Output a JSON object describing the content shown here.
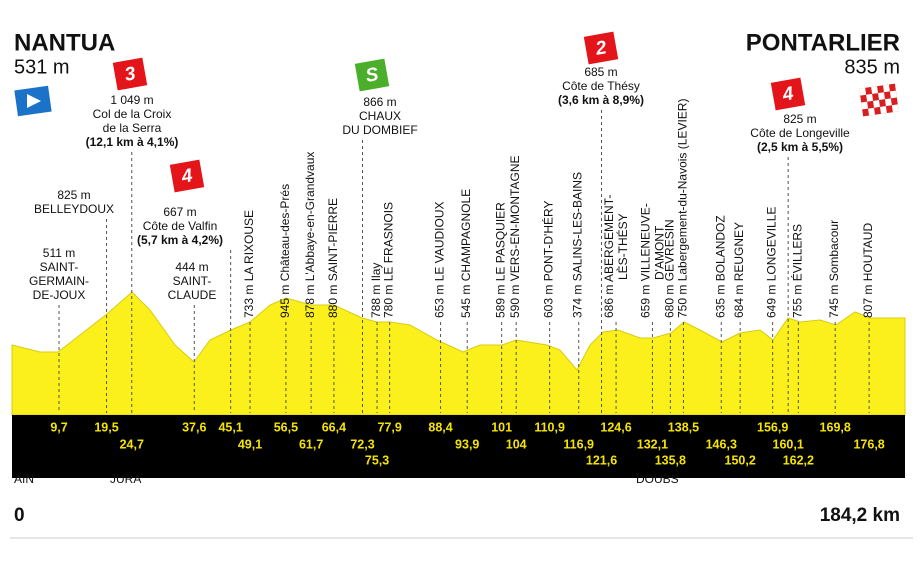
{
  "start": {
    "name": "NANTUA",
    "altitude": "531 m",
    "distance": {
      "value": 0,
      "label": "0"
    }
  },
  "finish": {
    "name": "PONTARLIER",
    "altitude": "835 m",
    "distance": {
      "value": 184.2,
      "label": "184,2 km"
    }
  },
  "regions": [
    "AIN",
    "JURA",
    "DOUBS"
  ],
  "waypoints": [
    {
      "type": "place",
      "km": {
        "value": 9.7,
        "label": "9,7"
      },
      "altitude": "511 m",
      "name_lines": [
        "SAINT-",
        "GERMAIN-",
        "DE-JOUX"
      ]
    },
    {
      "type": "place",
      "km": {
        "value": 19.5,
        "label": "19,5"
      },
      "altitude": "825 m",
      "name_lines": [
        "BELLEYDOUX"
      ]
    },
    {
      "type": "climb",
      "km": {
        "value": 24.7,
        "label": "24,7"
      },
      "category": "3",
      "altitude": "1 049 m",
      "name_lines": [
        "Col de la Croix",
        "de la Serra"
      ],
      "detail": "(12,1 km à 4,1%)"
    },
    {
      "type": "place",
      "km": {
        "value": 37.6,
        "label": "37,6"
      },
      "altitude": "444 m",
      "name_lines": [
        "SAINT-",
        "CLAUDE"
      ]
    },
    {
      "type": "climb",
      "km": {
        "value": 45.1,
        "label": "45,1"
      },
      "category": "4",
      "altitude": "667 m",
      "name_lines": [
        "Côte de Valfin"
      ],
      "detail": "(5,7 km à 4,2%)"
    },
    {
      "type": "town",
      "km": {
        "value": 49.1,
        "label": "49,1"
      },
      "altitude": "733 m",
      "name_lines": [
        "LA RIXOUSE"
      ]
    },
    {
      "type": "town",
      "km": {
        "value": 56.5,
        "label": "56,5"
      },
      "altitude": "945 m",
      "name_lines": [
        "Château-des-Prés"
      ]
    },
    {
      "type": "town",
      "km": {
        "value": 61.7,
        "label": "61,7"
      },
      "altitude": "878 m",
      "name_lines": [
        "L'Abbaye-en-Grandvaux"
      ]
    },
    {
      "type": "town",
      "km": {
        "value": 66.4,
        "label": "66,4"
      },
      "altitude": "880 m",
      "name_lines": [
        "SAINT-PIERRE"
      ]
    },
    {
      "type": "sprint",
      "km": {
        "value": 72.3,
        "label": "72,3"
      },
      "category": "S",
      "altitude": "866 m",
      "name_lines": [
        "CHAUX",
        "DU DOMBIEF"
      ]
    },
    {
      "type": "town",
      "km": {
        "value": 75.3,
        "label": "75,3"
      },
      "altitude": "788 m",
      "name_lines": [
        "Ilay"
      ]
    },
    {
      "type": "town",
      "km": {
        "value": 77.9,
        "label": "77,9"
      },
      "altitude": "780 m",
      "name_lines": [
        "LE FRASNOIS"
      ]
    },
    {
      "type": "town",
      "km": {
        "value": 88.4,
        "label": "88,4"
      },
      "altitude": "653 m",
      "name_lines": [
        "LE VAUDIOUX"
      ]
    },
    {
      "type": "town",
      "km": {
        "value": 93.9,
        "label": "93,9"
      },
      "altitude": "545 m",
      "name_lines": [
        "CHAMPAGNOLE"
      ]
    },
    {
      "type": "town",
      "km": {
        "value": 101,
        "label": "101"
      },
      "altitude": "589 m",
      "name_lines": [
        "LE PASQUIER"
      ]
    },
    {
      "type": "town",
      "km": {
        "value": 104,
        "label": "104"
      },
      "altitude": "590 m",
      "name_lines": [
        "VERS-EN-MONTAGNE"
      ]
    },
    {
      "type": "town",
      "km": {
        "value": 110.9,
        "label": "110,9"
      },
      "altitude": "603 m",
      "name_lines": [
        "PONT-D'HÉRY"
      ]
    },
    {
      "type": "town",
      "km": {
        "value": 116.9,
        "label": "116,9"
      },
      "altitude": "374 m",
      "name_lines": [
        "SALINS-LES-BAINS"
      ]
    },
    {
      "type": "climb",
      "km": {
        "value": 121.6,
        "label": "121,6"
      },
      "category": "2",
      "altitude": "685 m",
      "name_lines": [
        "Côte de Thésy"
      ],
      "detail": "(3,6 km à 8,9%)"
    },
    {
      "type": "town",
      "km": {
        "value": 124.6,
        "label": "124,6"
      },
      "altitude": "686 m",
      "name_lines": [
        "ABERGEMENT-",
        "LÈS-THÉSY"
      ]
    },
    {
      "type": "town",
      "km": {
        "value": 132.1,
        "label": "132,1"
      },
      "altitude": "659 m",
      "name_lines": [
        "VILLENEUVE-",
        "D'AMONT"
      ]
    },
    {
      "type": "town",
      "km": {
        "value": 135.8,
        "label": "135,8"
      },
      "altitude": "680 m",
      "name_lines": [
        "GEVRESIN"
      ]
    },
    {
      "type": "town",
      "km": {
        "value": 138.5,
        "label": "138,5"
      },
      "altitude": "750 m",
      "name_lines": [
        "Labergement-du-Navois (LEVIER)"
      ]
    },
    {
      "type": "town",
      "km": {
        "value": 146.3,
        "label": "146,3"
      },
      "altitude": "635 m",
      "name_lines": [
        "BOLANDOZ"
      ]
    },
    {
      "type": "town",
      "km": {
        "value": 150.2,
        "label": "150,2"
      },
      "altitude": "684 m",
      "name_lines": [
        "REUGNEY"
      ]
    },
    {
      "type": "town",
      "km": {
        "value": 156.9,
        "label": "156,9"
      },
      "altitude": "649 m",
      "name_lines": [
        "LONGEVILLE"
      ]
    },
    {
      "type": "climb",
      "km": {
        "value": 160.1,
        "label": "160,1"
      },
      "category": "4",
      "altitude": "825 m",
      "name_lines": [
        "Côte de Longeville"
      ],
      "detail": "(2,5 km à 5,5%)"
    },
    {
      "type": "town",
      "km": {
        "value": 162.2,
        "label": "162,2"
      },
      "altitude": "755 m",
      "name_lines": [
        "ÉVILLERS"
      ]
    },
    {
      "type": "town",
      "km": {
        "value": 169.8,
        "label": "169,8"
      },
      "altitude": "745 m",
      "name_lines": [
        "Sombacour"
      ]
    },
    {
      "type": "town",
      "km": {
        "value": 176.8,
        "label": "176,8"
      },
      "altitude": "807 m",
      "name_lines": [
        "HOUTAUD"
      ]
    }
  ]
}
